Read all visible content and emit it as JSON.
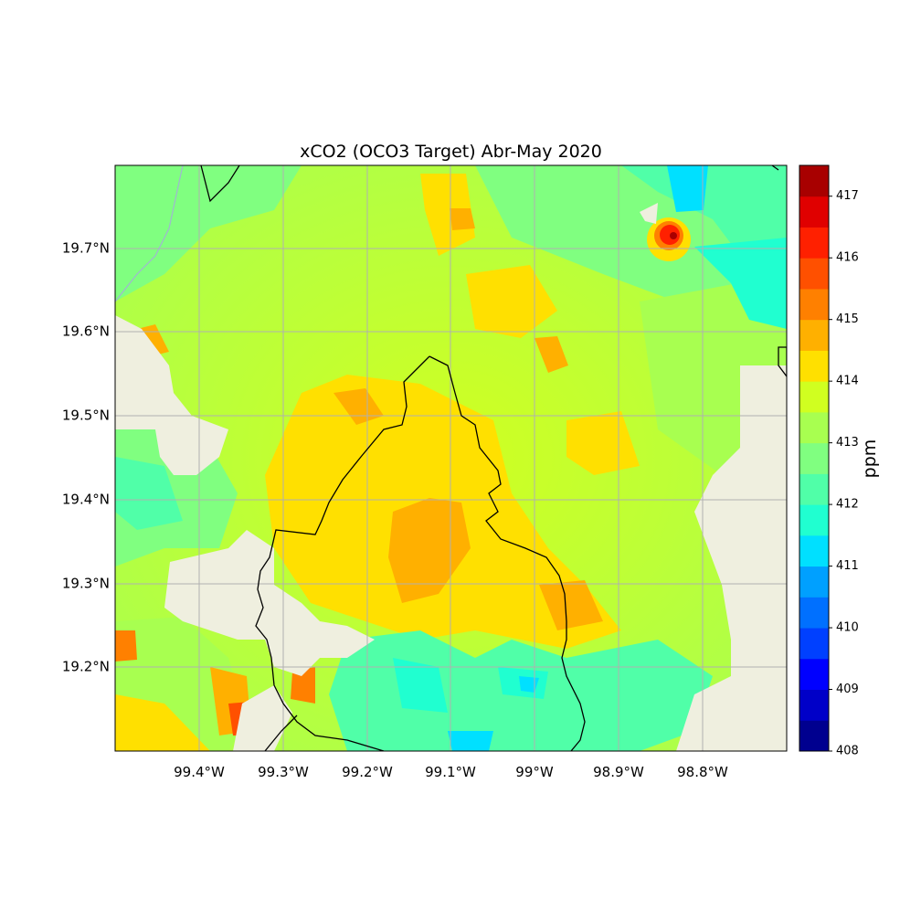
{
  "map": {
    "title": "xCO2 (OCO3 Target) Abr-May 2020",
    "x_ticks": [
      "99.4°W",
      "99.3°W",
      "99.2°W",
      "99.1°W",
      "99°W",
      "98.9°W",
      "98.8°W"
    ],
    "y_ticks": [
      "19.7°N",
      "19.6°N",
      "19.5°N",
      "19.4°N",
      "19.3°N",
      "19.2°N"
    ],
    "x_tick_values": [
      -99.4,
      -99.3,
      -99.2,
      -99.1,
      -99.0,
      -98.9,
      -98.8
    ],
    "y_tick_values": [
      19.7,
      19.6,
      19.5,
      19.4,
      19.3,
      19.2
    ],
    "lon_range": [
      -99.5,
      -98.7
    ],
    "lat_range": [
      19.1,
      19.8
    ],
    "gridlines": true,
    "land_color": "#efefdf",
    "boundary_color": "#000000"
  },
  "colorbar": {
    "label": "ppm",
    "range": [
      408,
      417.5
    ],
    "tick_labels": [
      "408",
      "409",
      "410",
      "411",
      "412",
      "413",
      "414",
      "415",
      "416",
      "417"
    ],
    "tick_values": [
      408,
      409,
      410,
      411,
      412,
      413,
      414,
      415,
      416,
      417
    ],
    "colors": [
      "#00008f",
      "#0000c8",
      "#0000ff",
      "#0040ff",
      "#0070ff",
      "#00a0ff",
      "#00e0ff",
      "#20ffd0",
      "#50ffa8",
      "#80ff80",
      "#a8ff50",
      "#d0ff20",
      "#ffe000",
      "#ffb000",
      "#ff8000",
      "#ff5000",
      "#ff2000",
      "#e00000",
      "#a80000"
    ]
  }
}
